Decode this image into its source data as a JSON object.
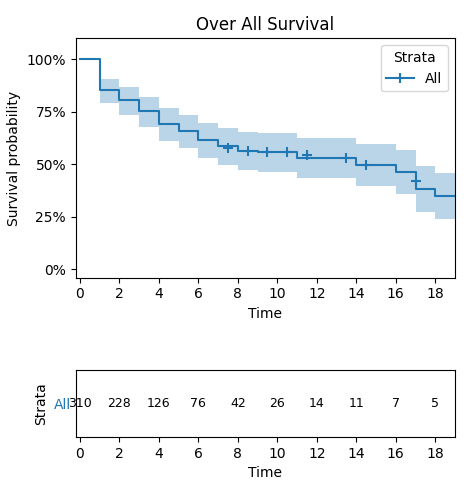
{
  "chart_data": [
    {
      "type": "step",
      "title": "Over All Survival",
      "xlabel": "Time",
      "ylabel": "Survival probability",
      "legend_title": "Strata",
      "legend": "upper right",
      "grid": false,
      "x": [
        0,
        1.0,
        1.0,
        2.0,
        2.0,
        3.0,
        3.0,
        4.0,
        4.0,
        5.0,
        5.0,
        6.0,
        6.0,
        7.0,
        7.0,
        8.0,
        8.0,
        9.0,
        9.0,
        10.0,
        10.0,
        11.0,
        11.0,
        12.0,
        12.0,
        13.0,
        13.0,
        14.0,
        14.0,
        15.0,
        15.0,
        16.0,
        16.0,
        17.0,
        17.0,
        18.0,
        18.0,
        19.0
      ],
      "xlim": [
        -0.2,
        19.0
      ],
      "ylim": [
        -0.04,
        1.1
      ],
      "xticks": [
        0,
        2,
        4,
        6,
        8,
        10,
        12,
        14,
        16,
        18
      ],
      "yticks": [
        {
          "value": 0.0,
          "label": "0%"
        },
        {
          "value": 0.25,
          "label": "25%"
        },
        {
          "value": 0.5,
          "label": "50%"
        },
        {
          "value": 0.75,
          "label": "75%"
        },
        {
          "value": 1.0,
          "label": "100%"
        }
      ],
      "series": [
        {
          "name": "All",
          "marker": "+",
          "values": [
            1.0,
            1.0,
            0.855,
            0.855,
            0.806,
            0.806,
            0.753,
            0.753,
            0.694,
            0.694,
            0.659,
            0.659,
            0.617,
            0.617,
            0.587,
            0.587,
            0.565,
            0.565,
            0.557,
            0.557,
            0.557,
            0.557,
            0.531,
            0.531,
            0.531,
            0.531,
            0.531,
            0.531,
            0.498,
            0.498,
            0.498,
            0.498,
            0.464,
            0.464,
            0.383,
            0.383,
            0.349,
            0.349
          ],
          "upper": [
            1.0,
            1.0,
            0.908,
            0.908,
            0.867,
            0.867,
            0.821,
            0.821,
            0.769,
            0.769,
            0.737,
            0.737,
            0.699,
            0.699,
            0.675,
            0.675,
            0.655,
            0.655,
            0.648,
            0.648,
            0.648,
            0.648,
            0.625,
            0.625,
            0.625,
            0.625,
            0.625,
            0.625,
            0.597,
            0.597,
            0.597,
            0.597,
            0.568,
            0.568,
            0.491,
            0.491,
            0.458,
            0.458
          ],
          "lower": [
            1.0,
            1.0,
            0.793,
            0.793,
            0.735,
            0.735,
            0.678,
            0.678,
            0.613,
            0.613,
            0.576,
            0.576,
            0.53,
            0.53,
            0.496,
            0.496,
            0.471,
            0.471,
            0.462,
            0.462,
            0.462,
            0.462,
            0.433,
            0.433,
            0.433,
            0.433,
            0.433,
            0.433,
            0.396,
            0.396,
            0.396,
            0.396,
            0.357,
            0.357,
            0.272,
            0.272,
            0.238,
            0.238
          ],
          "censor_x": [
            7.5,
            8.5,
            9.5,
            10.5,
            11.5,
            13.5,
            14.5,
            17.0
          ],
          "censor_y": [
            0.576,
            0.561,
            0.557,
            0.557,
            0.544,
            0.531,
            0.498,
            0.42
          ]
        }
      ]
    },
    {
      "type": "table",
      "xlabel": "Time",
      "ylabel": "Strata",
      "data_labels": true,
      "x": [
        0,
        2,
        4,
        6,
        8,
        10,
        12,
        14,
        16,
        18
      ],
      "xlim": [
        -0.2,
        19.0
      ],
      "xticks": [
        0,
        2,
        4,
        6,
        8,
        10,
        12,
        14,
        16,
        18
      ],
      "series": [
        {
          "name": "All",
          "values": [
            310,
            228,
            126,
            76,
            42,
            26,
            14,
            11,
            7,
            5
          ]
        }
      ]
    }
  ]
}
